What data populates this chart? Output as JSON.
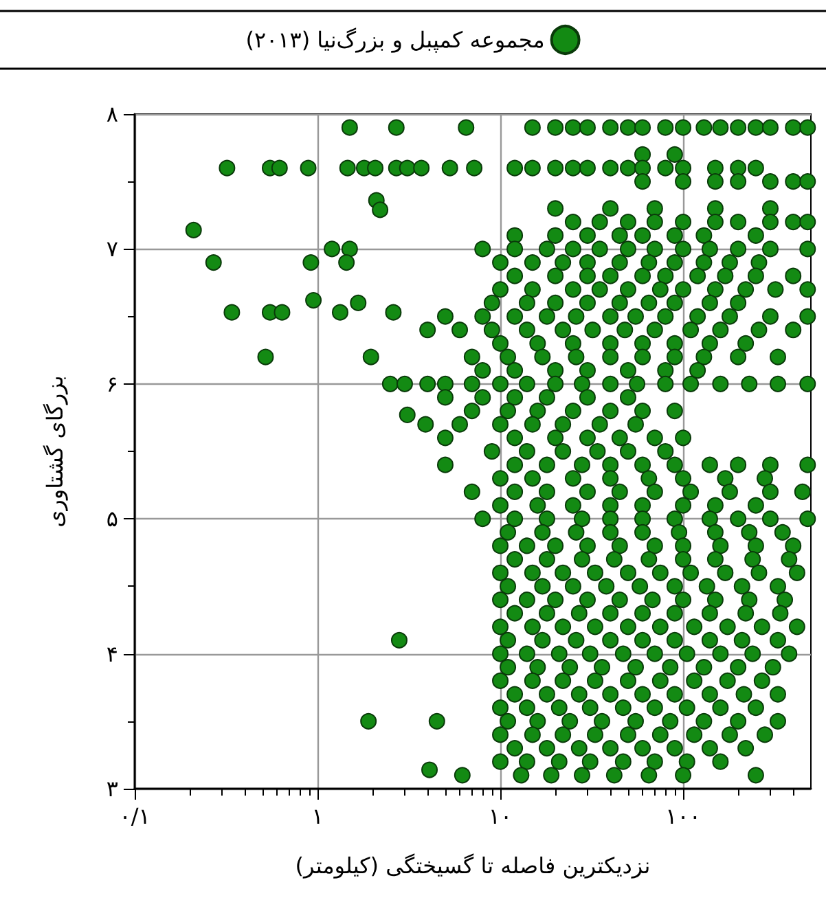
{
  "chart_data": {
    "type": "scatter",
    "xlabel": "نزدیکترین فاصله تا گسیختگی (کیلومتر)",
    "ylabel": "بزرگای گشتاوری",
    "log": "x",
    "grid": true,
    "legend": "top",
    "marker": "circle",
    "xlim": [
      0.1,
      500
    ],
    "ylim": [
      3,
      8
    ],
    "xticks": [
      {
        "value": 0.1,
        "label": "۰/۱"
      },
      {
        "value": 0.2,
        "label": null
      },
      {
        "value": 0.3,
        "label": null
      },
      {
        "value": 0.4,
        "label": null
      },
      {
        "value": 0.5,
        "label": null
      },
      {
        "value": 0.6,
        "label": null
      },
      {
        "value": 0.7,
        "label": null
      },
      {
        "value": 0.8,
        "label": null
      },
      {
        "value": 0.9,
        "label": null
      },
      {
        "value": 1,
        "label": "۱"
      },
      {
        "value": 2,
        "label": null
      },
      {
        "value": 3,
        "label": null
      },
      {
        "value": 4,
        "label": null
      },
      {
        "value": 5,
        "label": null
      },
      {
        "value": 6,
        "label": null
      },
      {
        "value": 7,
        "label": null
      },
      {
        "value": 8,
        "label": null
      },
      {
        "value": 9,
        "label": null
      },
      {
        "value": 10,
        "label": "۱۰"
      },
      {
        "value": 20,
        "label": null
      },
      {
        "value": 30,
        "label": null
      },
      {
        "value": 40,
        "label": null
      },
      {
        "value": 50,
        "label": null
      },
      {
        "value": 60,
        "label": null
      },
      {
        "value": 70,
        "label": null
      },
      {
        "value": 80,
        "label": null
      },
      {
        "value": 90,
        "label": null
      },
      {
        "value": 100,
        "label": "۱۰۰"
      },
      {
        "value": 200,
        "label": null
      },
      {
        "value": 300,
        "label": null
      },
      {
        "value": 400,
        "label": null
      }
    ],
    "yticks": [
      {
        "value": 3,
        "label": "۳"
      },
      {
        "value": 3.5,
        "label": null
      },
      {
        "value": 4,
        "label": "۴"
      },
      {
        "value": 4.5,
        "label": null
      },
      {
        "value": 5,
        "label": "۵"
      },
      {
        "value": 5.5,
        "label": null
      },
      {
        "value": 6,
        "label": "۶"
      },
      {
        "value": 6.5,
        "label": null
      },
      {
        "value": 7,
        "label": "۷"
      },
      {
        "value": 7.5,
        "label": null
      },
      {
        "value": 8,
        "label": "۸"
      }
    ],
    "series": [
      {
        "name": "مجموعه کمپبل و بزرگ‌نیا (۲۰۱۳)",
        "color": "#138a13",
        "x": [
          1.5,
          2.7,
          6.5,
          0.32,
          0.55,
          0.62,
          0.89,
          1.46,
          1.8,
          2.07,
          2.7,
          3.1,
          3.7,
          5.3,
          7.2,
          0.21,
          0.27,
          0.92,
          1.2,
          1.5,
          1.44,
          0.34,
          0.55,
          0.64,
          0.95,
          1.33,
          1.67,
          2.6,
          0.52,
          1.96,
          3.1,
          3.9,
          2.1,
          2.2,
          2.8,
          1.9,
          4.5,
          4.1,
          6.2,
          15,
          20,
          25,
          30,
          40,
          50,
          60,
          80,
          100,
          130,
          160,
          200,
          250,
          300,
          400,
          480,
          60,
          90,
          12,
          15,
          20,
          25,
          30,
          40,
          50,
          60,
          80,
          100,
          150,
          200,
          250,
          60,
          100,
          150,
          200,
          300,
          400,
          480,
          20,
          40,
          70,
          150,
          300,
          25,
          35,
          50,
          70,
          100,
          150,
          200,
          300,
          400,
          480,
          12,
          20,
          30,
          45,
          60,
          90,
          130,
          250,
          8,
          12,
          18,
          25,
          35,
          50,
          70,
          100,
          140,
          200,
          300,
          480,
          10,
          15,
          22,
          30,
          45,
          65,
          90,
          130,
          180,
          260,
          12,
          20,
          30,
          40,
          60,
          80,
          120,
          170,
          250,
          400,
          10,
          15,
          25,
          35,
          50,
          75,
          100,
          150,
          220,
          320,
          480,
          9,
          14,
          20,
          30,
          45,
          65,
          90,
          140,
          200,
          5,
          8,
          12,
          18,
          26,
          40,
          55,
          80,
          120,
          180,
          300,
          480,
          4,
          6,
          9,
          14,
          22,
          32,
          48,
          70,
          110,
          160,
          260,
          400,
          10,
          16,
          25,
          40,
          60,
          90,
          140,
          220,
          7,
          11,
          17,
          26,
          40,
          60,
          90,
          130,
          200,
          330,
          8,
          12,
          20,
          30,
          50,
          80,
          120,
          2.5,
          3,
          4,
          5,
          7,
          10,
          14,
          20,
          28,
          40,
          56,
          80,
          110,
          160,
          230,
          330,
          480,
          5,
          8,
          12,
          18,
          30,
          50,
          7,
          11,
          16,
          25,
          40,
          60,
          90,
          6,
          10,
          15,
          22,
          35,
          55,
          5,
          12,
          20,
          30,
          45,
          70,
          100,
          9,
          14,
          22,
          34,
          50,
          80,
          5,
          12,
          18,
          28,
          40,
          60,
          90,
          140,
          200,
          300,
          480,
          10,
          15,
          25,
          40,
          65,
          100,
          170,
          280,
          7,
          12,
          18,
          30,
          45,
          70,
          110,
          180,
          300,
          450,
          10,
          16,
          25,
          40,
          60,
          100,
          150,
          250,
          8,
          12,
          18,
          28,
          40,
          60,
          90,
          140,
          200,
          300,
          480,
          11,
          17,
          26,
          40,
          60,
          95,
          150,
          230,
          350,
          10,
          14,
          20,
          30,
          45,
          70,
          100,
          160,
          250,
          400,
          12,
          18,
          28,
          42,
          65,
          100,
          150,
          240,
          380,
          10,
          15,
          22,
          33,
          50,
          75,
          110,
          170,
          260,
          420,
          11,
          17,
          25,
          38,
          58,
          90,
          135,
          210,
          330,
          10,
          14,
          20,
          30,
          45,
          68,
          100,
          150,
          230,
          360,
          12,
          18,
          27,
          40,
          60,
          90,
          140,
          220,
          340,
          10,
          15,
          22,
          33,
          50,
          75,
          115,
          175,
          270,
          420,
          11,
          17,
          26,
          40,
          60,
          90,
          140,
          210,
          330,
          10,
          14,
          21,
          31,
          47,
          70,
          105,
          160,
          240,
          380,
          11,
          16,
          24,
          36,
          55,
          85,
          130,
          200,
          310,
          10,
          15,
          22,
          33,
          50,
          75,
          115,
          175,
          270,
          12,
          18,
          27,
          40,
          60,
          90,
          140,
          215,
          330,
          10,
          14,
          21,
          31,
          47,
          70,
          105,
          160,
          250,
          11,
          16,
          24,
          36,
          55,
          85,
          130,
          200,
          330,
          10,
          15,
          22,
          33,
          50,
          75,
          115,
          180,
          280,
          12,
          18,
          27,
          40,
          60,
          90,
          140,
          220,
          10,
          14,
          21,
          31,
          47,
          70,
          105,
          160,
          13,
          19,
          28,
          42,
          65,
          100,
          250
        ],
        "values": [
          7.9,
          7.9,
          7.9,
          7.6,
          7.6,
          7.6,
          7.6,
          7.6,
          7.6,
          7.6,
          7.6,
          7.6,
          7.6,
          7.6,
          7.6,
          7.14,
          6.9,
          6.9,
          7.0,
          7.0,
          6.9,
          6.53,
          6.53,
          6.53,
          6.62,
          6.53,
          6.6,
          6.53,
          6.2,
          6.2,
          5.77,
          5.7,
          7.36,
          7.29,
          4.1,
          3.5,
          3.5,
          3.14,
          3.1,
          7.9,
          7.9,
          7.9,
          7.9,
          7.9,
          7.9,
          7.9,
          7.9,
          7.9,
          7.9,
          7.9,
          7.9,
          7.9,
          7.9,
          7.9,
          7.9,
          7.7,
          7.7,
          7.6,
          7.6,
          7.6,
          7.6,
          7.6,
          7.6,
          7.6,
          7.6,
          7.6,
          7.6,
          7.6,
          7.6,
          7.6,
          7.5,
          7.5,
          7.5,
          7.5,
          7.5,
          7.5,
          7.5,
          7.3,
          7.3,
          7.3,
          7.3,
          7.3,
          7.2,
          7.2,
          7.2,
          7.2,
          7.2,
          7.2,
          7.2,
          7.2,
          7.2,
          7.2,
          7.1,
          7.1,
          7.1,
          7.1,
          7.1,
          7.1,
          7.1,
          7.1,
          7.0,
          7.0,
          7.0,
          7.0,
          7.0,
          7.0,
          7.0,
          7.0,
          7.0,
          7.0,
          7.0,
          7.0,
          6.9,
          6.9,
          6.9,
          6.9,
          6.9,
          6.9,
          6.9,
          6.9,
          6.9,
          6.9,
          6.8,
          6.8,
          6.8,
          6.8,
          6.8,
          6.8,
          6.8,
          6.8,
          6.8,
          6.8,
          6.7,
          6.7,
          6.7,
          6.7,
          6.7,
          6.7,
          6.7,
          6.7,
          6.7,
          6.7,
          6.7,
          6.6,
          6.6,
          6.6,
          6.6,
          6.6,
          6.6,
          6.6,
          6.6,
          6.6,
          6.5,
          6.5,
          6.5,
          6.5,
          6.5,
          6.5,
          6.5,
          6.5,
          6.5,
          6.5,
          6.5,
          6.5,
          6.4,
          6.4,
          6.4,
          6.4,
          6.4,
          6.4,
          6.4,
          6.4,
          6.4,
          6.4,
          6.4,
          6.4,
          6.3,
          6.3,
          6.3,
          6.3,
          6.3,
          6.3,
          6.3,
          6.3,
          6.2,
          6.2,
          6.2,
          6.2,
          6.2,
          6.2,
          6.2,
          6.2,
          6.2,
          6.2,
          6.1,
          6.1,
          6.1,
          6.1,
          6.1,
          6.1,
          6.1,
          6.0,
          6.0,
          6.0,
          6.0,
          6.0,
          6.0,
          6.0,
          6.0,
          6.0,
          6.0,
          6.0,
          6.0,
          6.0,
          6.0,
          6.0,
          6.0,
          6.0,
          5.9,
          5.9,
          5.9,
          5.9,
          5.9,
          5.9,
          5.8,
          5.8,
          5.8,
          5.8,
          5.8,
          5.8,
          5.8,
          5.7,
          5.7,
          5.7,
          5.7,
          5.7,
          5.7,
          5.6,
          5.6,
          5.6,
          5.6,
          5.6,
          5.6,
          5.6,
          5.5,
          5.5,
          5.5,
          5.5,
          5.5,
          5.5,
          5.4,
          5.4,
          5.4,
          5.4,
          5.4,
          5.4,
          5.4,
          5.4,
          5.4,
          5.4,
          5.4,
          5.3,
          5.3,
          5.3,
          5.3,
          5.3,
          5.3,
          5.3,
          5.3,
          5.2,
          5.2,
          5.2,
          5.2,
          5.2,
          5.2,
          5.2,
          5.2,
          5.2,
          5.2,
          5.1,
          5.1,
          5.1,
          5.1,
          5.1,
          5.1,
          5.1,
          5.1,
          5.0,
          5.0,
          5.0,
          5.0,
          5.0,
          5.0,
          5.0,
          5.0,
          5.0,
          5.0,
          5.0,
          4.9,
          4.9,
          4.9,
          4.9,
          4.9,
          4.9,
          4.9,
          4.9,
          4.9,
          4.8,
          4.8,
          4.8,
          4.8,
          4.8,
          4.8,
          4.8,
          4.8,
          4.8,
          4.8,
          4.7,
          4.7,
          4.7,
          4.7,
          4.7,
          4.7,
          4.7,
          4.7,
          4.7,
          4.6,
          4.6,
          4.6,
          4.6,
          4.6,
          4.6,
          4.6,
          4.6,
          4.6,
          4.6,
          4.5,
          4.5,
          4.5,
          4.5,
          4.5,
          4.5,
          4.5,
          4.5,
          4.5,
          4.4,
          4.4,
          4.4,
          4.4,
          4.4,
          4.4,
          4.4,
          4.4,
          4.4,
          4.4,
          4.3,
          4.3,
          4.3,
          4.3,
          4.3,
          4.3,
          4.3,
          4.3,
          4.3,
          4.2,
          4.2,
          4.2,
          4.2,
          4.2,
          4.2,
          4.2,
          4.2,
          4.2,
          4.2,
          4.1,
          4.1,
          4.1,
          4.1,
          4.1,
          4.1,
          4.1,
          4.1,
          4.1,
          4.0,
          4.0,
          4.0,
          4.0,
          4.0,
          4.0,
          4.0,
          4.0,
          4.0,
          4.0,
          3.9,
          3.9,
          3.9,
          3.9,
          3.9,
          3.9,
          3.9,
          3.9,
          3.9,
          3.8,
          3.8,
          3.8,
          3.8,
          3.8,
          3.8,
          3.8,
          3.8,
          3.8,
          3.7,
          3.7,
          3.7,
          3.7,
          3.7,
          3.7,
          3.7,
          3.7,
          3.7,
          3.6,
          3.6,
          3.6,
          3.6,
          3.6,
          3.6,
          3.6,
          3.6,
          3.6,
          3.5,
          3.5,
          3.5,
          3.5,
          3.5,
          3.5,
          3.5,
          3.5,
          3.5,
          3.4,
          3.4,
          3.4,
          3.4,
          3.4,
          3.4,
          3.4,
          3.4,
          3.4,
          3.3,
          3.3,
          3.3,
          3.3,
          3.3,
          3.3,
          3.3,
          3.3,
          3.2,
          3.2,
          3.2,
          3.2,
          3.2,
          3.2,
          3.2,
          3.2,
          3.1,
          3.1,
          3.1,
          3.1,
          3.1,
          3.1,
          3.1
        ]
      }
    ]
  }
}
